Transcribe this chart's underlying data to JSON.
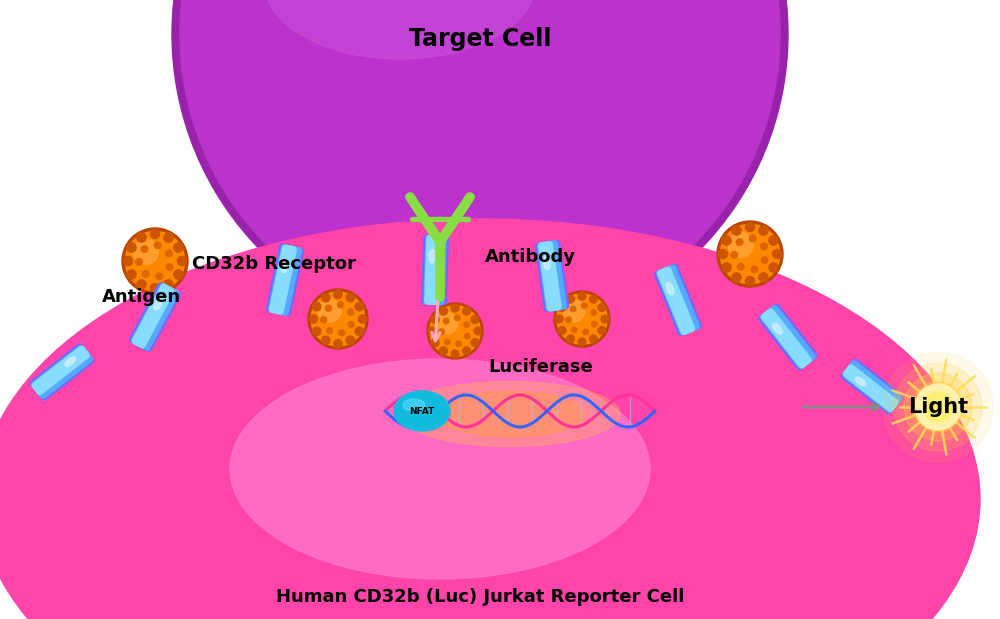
{
  "title": "Target Cell",
  "bottom_label": "Human CD32b (Luc) Jurkat Reporter Cell",
  "antigen_label": "Antigen",
  "antibody_label": "Antibody",
  "receptor_label": "CD32b Receptor",
  "luciferase_label": "Luciferase",
  "nfat_label": "NFAT",
  "light_label": "Light",
  "bg_color": "#ffffff",
  "target_cell_color": "#bb33cc",
  "target_cell_highlight": "#cc55dd",
  "reporter_cell_outer": "#ff55bb",
  "reporter_cell_inner": "#ff88cc",
  "reporter_nucleus_color": "#ee44aa",
  "antigen_base": "#cc5500",
  "antigen_main": "#ff8800",
  "antigen_highlight": "#ffaa33",
  "antigen_bump": "#dd6600",
  "antibody_color": "#88dd44",
  "receptor_cyan": "#44ddff",
  "receptor_blue": "#6688ff",
  "receptor_purple": "#8855ff",
  "nfat_color": "#11bbdd",
  "dna_pink": "#ff3399",
  "dna_blue": "#3366ff",
  "light_outer": "#ffcc44",
  "light_inner": "#ffee99",
  "arrow_color": "#ffbbdd",
  "gray_arrow": "#888888"
}
